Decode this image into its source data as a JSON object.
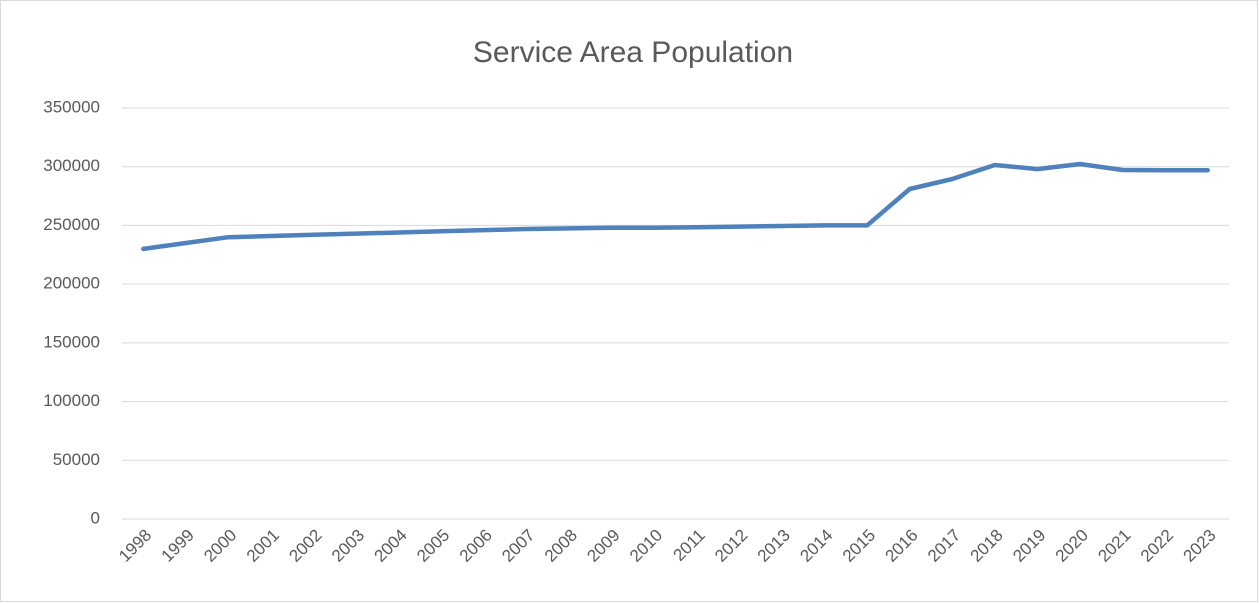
{
  "chart_data": {
    "type": "line",
    "title": "Service Area Population",
    "categories": [
      "1998",
      "1999",
      "2000",
      "2001",
      "2002",
      "2003",
      "2004",
      "2005",
      "2006",
      "2007",
      "2008",
      "2009",
      "2010",
      "2011",
      "2012",
      "2013",
      "2014",
      "2015",
      "2016",
      "2017",
      "2018",
      "2019",
      "2020",
      "2021",
      "2022",
      "2023"
    ],
    "series": [
      {
        "name": "Service Area Population",
        "color": "#4f81bd",
        "values": [
          230000,
          235000,
          240000,
          241000,
          242000,
          243000,
          244000,
          245000,
          246000,
          247000,
          247500,
          248000,
          248000,
          248500,
          249000,
          249500,
          250000,
          250000,
          281000,
          289500,
          301500,
          298000,
          302300,
          297200,
          297000,
          297000
        ]
      }
    ],
    "ylim": [
      0,
      350000
    ],
    "yticks": [
      0,
      50000,
      100000,
      150000,
      200000,
      250000,
      300000,
      350000
    ],
    "grid": true
  }
}
